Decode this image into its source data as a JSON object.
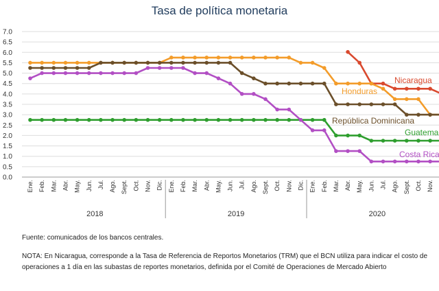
{
  "chart_data": {
    "type": "line",
    "title": "Tasa de política monetaria",
    "ylim": [
      0,
      7
    ],
    "yticks": [
      "0.0",
      "0.5",
      "1.0",
      "1.5",
      "2.0",
      "2.5",
      "3.0",
      "3.5",
      "4.0",
      "4.5",
      "5.0",
      "5.5",
      "6.0",
      "6.5",
      "7.0"
    ],
    "grid": true,
    "categories": [
      "Ene.",
      "Feb.",
      "Mar.",
      "Abr.",
      "May.",
      "Jun.",
      "Jul.",
      "Ago.",
      "Sept.",
      "Oct.",
      "Nov.",
      "Dic.",
      "Ene.",
      "Feb.",
      "Mar.",
      "Abr.",
      "May.",
      "Jun.",
      "Jul.",
      "Ago.",
      "Sept.",
      "Oct.",
      "Nov.",
      "Dic.",
      "Ene.",
      "Feb.",
      "Mar.",
      "Abr.",
      "May.",
      "Jun.",
      "Jul.",
      "Ago.",
      "Sept.",
      "Oct.",
      "Nov.",
      "Dic."
    ],
    "years": [
      "2018",
      "2019",
      "2020"
    ],
    "series": [
      {
        "name": "Nicaragua",
        "color": "#d9492e",
        "values": [
          null,
          null,
          null,
          null,
          null,
          null,
          null,
          null,
          null,
          null,
          null,
          null,
          null,
          null,
          null,
          null,
          null,
          null,
          null,
          null,
          null,
          null,
          null,
          null,
          null,
          null,
          null,
          6.02,
          5.5,
          4.5,
          4.5,
          4.25,
          4.25,
          4.25,
          4.25,
          4.0
        ]
      },
      {
        "name": "Honduras",
        "color": "#f39c2a",
        "values": [
          5.5,
          5.5,
          5.5,
          5.5,
          5.5,
          5.5,
          5.5,
          5.5,
          5.5,
          5.5,
          5.5,
          5.5,
          5.75,
          5.75,
          5.75,
          5.75,
          5.75,
          5.75,
          5.75,
          5.75,
          5.75,
          5.75,
          5.75,
          5.5,
          5.5,
          5.25,
          4.5,
          4.5,
          4.5,
          4.5,
          4.25,
          3.75,
          3.75,
          3.75,
          3.0,
          3.0
        ]
      },
      {
        "name": "República Dominicana",
        "color": "#6b4f2a",
        "values": [
          5.25,
          5.25,
          5.25,
          5.25,
          5.25,
          5.25,
          5.5,
          5.5,
          5.5,
          5.5,
          5.5,
          5.5,
          5.5,
          5.5,
          5.5,
          5.5,
          5.5,
          5.5,
          5.0,
          4.75,
          4.5,
          4.5,
          4.5,
          4.5,
          4.5,
          4.5,
          3.5,
          3.5,
          3.5,
          3.5,
          3.5,
          3.5,
          3.0,
          3.0,
          3.0,
          3.0
        ]
      },
      {
        "name": "Guatemala",
        "color": "#2e9e2e",
        "values": [
          2.75,
          2.75,
          2.75,
          2.75,
          2.75,
          2.75,
          2.75,
          2.75,
          2.75,
          2.75,
          2.75,
          2.75,
          2.75,
          2.75,
          2.75,
          2.75,
          2.75,
          2.75,
          2.75,
          2.75,
          2.75,
          2.75,
          2.75,
          2.75,
          2.75,
          2.75,
          2.0,
          2.0,
          2.0,
          1.75,
          1.75,
          1.75,
          1.75,
          1.75,
          1.75,
          1.75
        ]
      },
      {
        "name": "Costa Rica",
        "color": "#b24fc4",
        "values": [
          4.75,
          5.0,
          5.0,
          5.0,
          5.0,
          5.0,
          5.0,
          5.0,
          5.0,
          5.0,
          5.25,
          5.25,
          5.25,
          5.25,
          5.0,
          5.0,
          4.75,
          4.5,
          4.0,
          4.0,
          3.75,
          3.25,
          3.25,
          2.75,
          2.25,
          2.25,
          1.25,
          1.25,
          1.25,
          0.75,
          0.75,
          0.75,
          0.75,
          0.75,
          0.75,
          0.75
        ]
      }
    ]
  },
  "notes": {
    "source": "Fuente: comunicados de los bancos centrales.",
    "footnote": "NOTA: En Nicaragua, corresponde a la Tasa de Referencia de Reportos Monetarios (TRM) que el BCN utiliza para indicar el costo de operaciones a 1 día en las subastas de reportes monetarios, definida por el Comité de Operaciones de Mercado Abierto"
  }
}
